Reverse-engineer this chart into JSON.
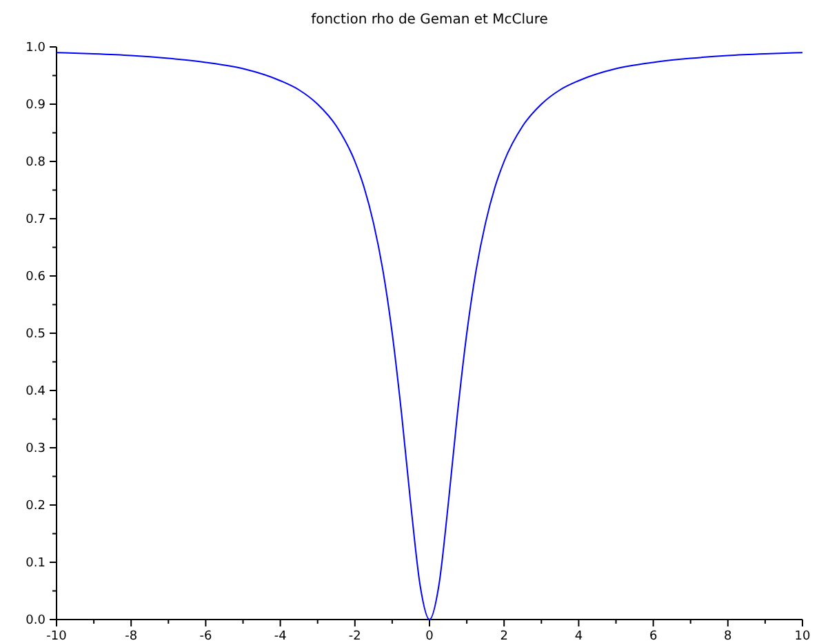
{
  "chart_data": {
    "type": "line",
    "title": "fonction rho de Geman et McClure",
    "x": [
      -10,
      -9,
      -8,
      -7,
      -6,
      -5,
      -4,
      -3.5,
      -3,
      -2.5,
      -2,
      -1.75,
      -1.5,
      -1.25,
      -1,
      -0.75,
      -0.5,
      -0.25,
      0,
      0.25,
      0.5,
      0.75,
      1,
      1.25,
      1.5,
      1.75,
      2,
      2.5,
      3,
      3.5,
      4,
      5,
      6,
      7,
      8,
      9,
      10
    ],
    "series": [
      {
        "color": "#0000ff",
        "values": [
          0.99,
          0.988,
          0.985,
          0.98,
          0.973,
          0.962,
          0.941,
          0.925,
          0.9,
          0.862,
          0.8,
          0.754,
          0.692,
          0.61,
          0.5,
          0.36,
          0.2,
          0.059,
          0,
          0.059,
          0.2,
          0.36,
          0.5,
          0.61,
          0.692,
          0.754,
          0.8,
          0.862,
          0.9,
          0.925,
          0.941,
          0.962,
          0.973,
          0.98,
          0.985,
          0.988,
          0.99
        ]
      }
    ],
    "xlim": [
      -10,
      10
    ],
    "xticks": [
      -10,
      -8,
      -6,
      -4,
      -2,
      0,
      2,
      4,
      6,
      8,
      10
    ],
    "ylim": [
      0,
      1
    ],
    "yticks": [
      {
        "value": 0,
        "label": "0.0"
      },
      {
        "value": 0.1,
        "label": "0.1"
      },
      {
        "value": 0.2,
        "label": "0.2"
      },
      {
        "value": 0.3,
        "label": "0.3"
      },
      {
        "value": 0.4,
        "label": "0.4"
      },
      {
        "value": 0.5,
        "label": "0.5"
      },
      {
        "value": 0.6,
        "label": "0.6"
      },
      {
        "value": 0.7,
        "label": "0.7"
      },
      {
        "value": 0.8,
        "label": "0.8"
      },
      {
        "value": 0.9,
        "label": "0.9"
      },
      {
        "value": 1,
        "label": "1.0"
      }
    ],
    "marker": "none",
    "line_style": "solid"
  }
}
